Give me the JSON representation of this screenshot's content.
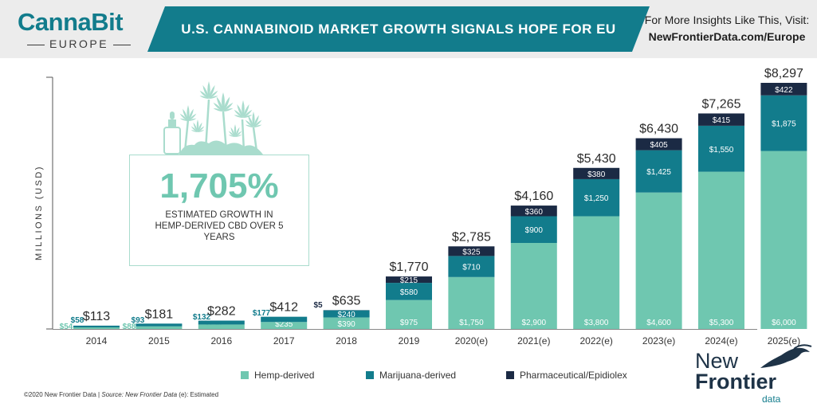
{
  "header": {
    "logo_text": "CannaBit",
    "logo_sub": "EUROPE",
    "title": "U.S. CANNABINOID MARKET GROWTH SIGNALS HOPE FOR EU",
    "visit_line1": "For More Insights Like This, Visit:",
    "visit_line2": "NewFrontierData.com/Europe"
  },
  "callout": {
    "big": "1,705%",
    "text": "ESTIMATED GROWTH IN HEMP-DERIVED CBD OVER 5 YEARS"
  },
  "footer": {
    "copyright": "©2020  New Frontier Data | ",
    "source": "Source: New Frontier Data",
    "note": "   (e): Estimated"
  },
  "brand_logo": {
    "line1": "New",
    "line2": "Frontier",
    "line3": "data"
  },
  "colors": {
    "hemp": "#6fc7b0",
    "marijuana": "#127c8c",
    "pharma": "#1b2a44",
    "banner": "#127c8c"
  },
  "chart_data": {
    "type": "bar",
    "stacked": true,
    "ylabel": "MILLIONS (USD)",
    "ylim": [
      0,
      8297
    ],
    "categories": [
      "2014",
      "2015",
      "2016",
      "2017",
      "2018",
      "2019",
      "2020(e)",
      "2021(e)",
      "2022(e)",
      "2023(e)",
      "2024(e)",
      "2025(e)"
    ],
    "series": [
      {
        "name": "Hemp-derived",
        "values": [
          54,
          88,
          150,
          235,
          390,
          975,
          1750,
          2900,
          3800,
          4600,
          5300,
          6000
        ],
        "labels": [
          "$54",
          "$88",
          "$150",
          "$235",
          "$390",
          "$975",
          "$1,750",
          "$2,900",
          "$3,800",
          "$4,600",
          "$5,300",
          "$6,000"
        ]
      },
      {
        "name": "Marijuana-derived",
        "values": [
          58,
          93,
          132,
          177,
          240,
          580,
          710,
          900,
          1250,
          1425,
          1550,
          1875
        ],
        "labels": [
          "$58",
          "$93",
          "$132",
          "$177",
          "$240",
          "$580",
          "$710",
          "$900",
          "$1,250",
          "$1,425",
          "$1,550",
          "$1,875"
        ]
      },
      {
        "name": "Pharmaceutical/Epidiolex",
        "values": [
          0,
          0,
          0,
          0,
          5,
          215,
          325,
          360,
          380,
          405,
          415,
          422
        ],
        "labels": [
          "",
          "",
          "",
          "",
          "$5",
          "$215",
          "$325",
          "$360",
          "$380",
          "$405",
          "$415",
          "$422"
        ]
      }
    ],
    "totals": [
      "$113",
      "$181",
      "$282",
      "$412",
      "$635",
      "$1,770",
      "$2,785",
      "$4,160",
      "$5,430",
      "$6,430",
      "$7,265",
      "$8,297"
    ],
    "legend_position": "bottom"
  }
}
